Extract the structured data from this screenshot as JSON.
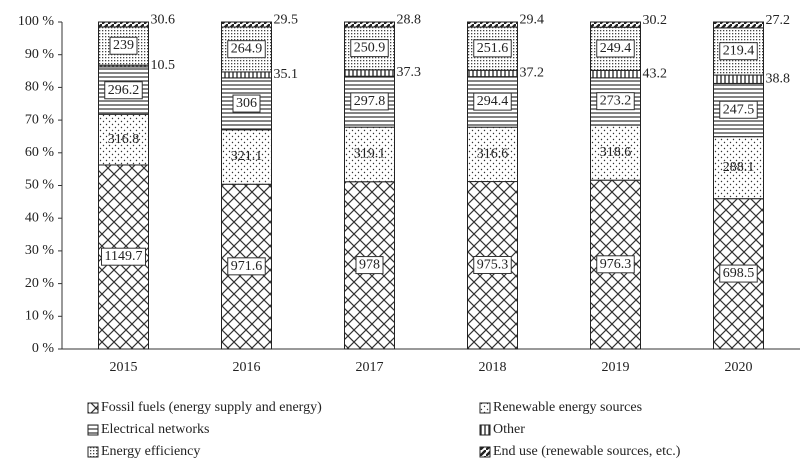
{
  "chart_data": {
    "type": "bar",
    "stacking": "percent",
    "categories": [
      "2015",
      "2016",
      "2017",
      "2018",
      "2019",
      "2020"
    ],
    "series": [
      {
        "name": "Fossil fuels (energy supply and energy)",
        "pattern": "crosshatch",
        "values": [
          1149.7,
          971.6,
          978,
          975.3,
          976.3,
          698.5
        ]
      },
      {
        "name": "Renewable energy sources",
        "pattern": "dots",
        "values": [
          316.8,
          321.1,
          319.1,
          316.6,
          318.6,
          288.1
        ]
      },
      {
        "name": "Electrical networks",
        "pattern": "hlines",
        "values": [
          296.2,
          306,
          297.8,
          294.4,
          273.2,
          247.5
        ]
      },
      {
        "name": "Other",
        "pattern": "vlines",
        "values": [
          10.5,
          35.1,
          37.3,
          37.2,
          43.2,
          38.8
        ]
      },
      {
        "name": "Energy efficiency",
        "pattern": "grid",
        "values": [
          239,
          264.9,
          250.9,
          251.6,
          249.4,
          219.4
        ]
      },
      {
        "name": "End use (renewable sources, etc.)",
        "pattern": "stripes",
        "values": [
          30.6,
          29.5,
          28.8,
          29.4,
          30.2,
          27.2
        ]
      }
    ],
    "ylim": [
      0,
      100
    ],
    "yticks": [
      {
        "value": 0,
        "label": "0 %"
      },
      {
        "value": 10,
        "label": "10 %"
      },
      {
        "value": 20,
        "label": "20 %"
      },
      {
        "value": 30,
        "label": "30 %"
      },
      {
        "value": 40,
        "label": "40 %"
      },
      {
        "value": 50,
        "label": "50 %"
      },
      {
        "value": 60,
        "label": "60 %"
      },
      {
        "value": 70,
        "label": "70 %"
      },
      {
        "value": 80,
        "label": "80 %"
      },
      {
        "value": 90,
        "label": "90 %"
      },
      {
        "value": 100,
        "label": "100 %"
      }
    ]
  }
}
